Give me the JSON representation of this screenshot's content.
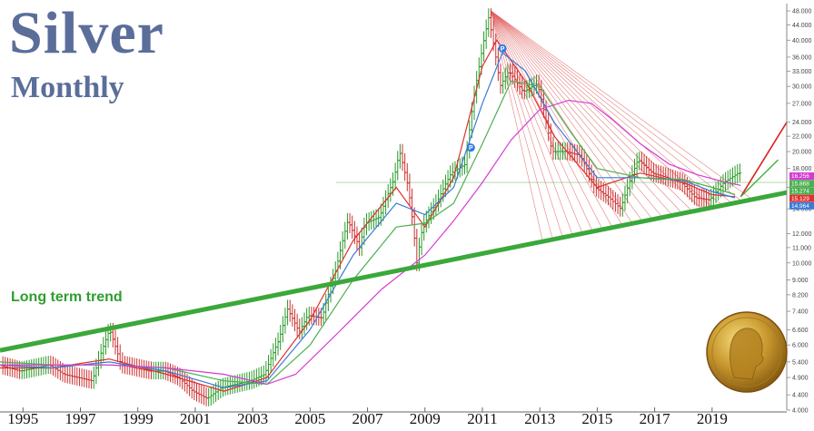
{
  "title": "Silver",
  "subtitle": "Monthly",
  "annotation_label": "Long term trend",
  "colors": {
    "title": "#5b6e9a",
    "trendline": "#3aa83a",
    "fan_lines": "#e06060",
    "projection_red": "#e02020",
    "projection_green": "#40b040",
    "ma_red": "#e03030",
    "ma_blue": "#3a7ad8",
    "ma_green": "#4caf50",
    "ma_magenta": "#d63ad6",
    "up_candle": "#2a9a2a",
    "down_candle": "#cc3030"
  },
  "chart_data": {
    "type": "line",
    "title": "Silver",
    "subtitle": "Monthly",
    "xlabel": "",
    "ylabel": "",
    "y_scale": "log",
    "grid": false,
    "x_tick_labels": [
      "1995",
      "1997",
      "1999",
      "2001",
      "2003",
      "2005",
      "2007",
      "2009",
      "2011",
      "2013",
      "2015",
      "2017",
      "2019"
    ],
    "y_tick_labels": [
      "48.000",
      "44.000",
      "40.000",
      "36.000",
      "33.000",
      "30.000",
      "27.000",
      "24.000",
      "22.000",
      "20.000",
      "18.000",
      "16.000",
      "14.000",
      "12.000",
      "11.000",
      "10.000",
      "9.000",
      "8.200",
      "7.400",
      "6.600",
      "6.000",
      "5.400",
      "4.900",
      "4.400",
      "4.000"
    ],
    "ylim": [
      4.0,
      48.0
    ],
    "xlim": [
      1994.2,
      2021.6
    ],
    "price_labels": [
      {
        "value": "16.256",
        "color": "#d63ad6"
      },
      {
        "value": "15.868",
        "color": "#4caf50"
      },
      {
        "value": "15.274",
        "color": "#4caf50"
      },
      {
        "value": "15.129",
        "color": "#e03030"
      },
      {
        "value": "14.964",
        "color": "#3a7ad8"
      }
    ],
    "markers": [
      {
        "label": "P",
        "x": 2010.6,
        "y": 20.5
      },
      {
        "label": "P",
        "x": 2011.7,
        "y": 38.0
      }
    ],
    "series": [
      {
        "name": "",
        "role": "price",
        "x": [
          1994.2,
          1995,
          1995.5,
          1996,
          1996.5,
          1997,
          1997.5,
          1998.1,
          1998.5,
          1999,
          1999.5,
          2000,
          2000.5,
          2001,
          2001.5,
          2002,
          2002.5,
          2003,
          2003.5,
          2004,
          2004.3,
          2004.7,
          2005,
          2005.5,
          2006,
          2006.4,
          2006.8,
          2007,
          2007.5,
          2008,
          2008.2,
          2008.5,
          2008.8,
          2009,
          2009.5,
          2010,
          2010.5,
          2011,
          2011.3,
          2011.7,
          2012,
          2012.5,
          2013,
          2013.5,
          2014,
          2014.5,
          2015,
          2015.5,
          2015.9,
          2016.5,
          2017,
          2017.5,
          2018,
          2018.5,
          2019,
          2019.5,
          2020.0
        ],
        "values": [
          5.3,
          5.1,
          5.2,
          5.3,
          5.0,
          4.9,
          4.8,
          6.6,
          5.3,
          5.2,
          5.1,
          5.1,
          4.9,
          4.5,
          4.3,
          4.6,
          4.7,
          4.8,
          5.0,
          6.2,
          7.5,
          6.5,
          7.2,
          7.1,
          9.7,
          13.0,
          11.0,
          12.8,
          13.3,
          16.8,
          20.0,
          16.0,
          10.0,
          12.5,
          14.6,
          17.5,
          18.5,
          35.0,
          46.0,
          30.0,
          33.0,
          29.0,
          30.5,
          20.0,
          20.0,
          19.5,
          16.0,
          15.0,
          14.0,
          19.0,
          17.5,
          17.0,
          16.5,
          15.0,
          14.8,
          16.5,
          17.5
        ]
      },
      {
        "name": "",
        "role": "ma-fast",
        "x": [
          1994.2,
          1996,
          1998,
          2000,
          2002,
          2003.5,
          2005,
          2006.5,
          2008,
          2009,
          2010,
          2011,
          2011.5,
          2012.5,
          2013.5,
          2015,
          2016.5,
          2018,
          2019,
          2019.8
        ],
        "values": [
          5.2,
          5.2,
          5.5,
          5.0,
          4.5,
          4.9,
          7.0,
          11.5,
          16.0,
          12.5,
          17.0,
          34.0,
          40.0,
          31.0,
          22.0,
          16.0,
          17.5,
          16.5,
          15.3,
          15.1
        ]
      },
      {
        "name": "",
        "role": "ma-mid",
        "x": [
          1994.2,
          1996,
          1998,
          2000,
          2002,
          2003.5,
          2005,
          2006.5,
          2008,
          2009,
          2010,
          2011,
          2011.7,
          2012.5,
          2013.5,
          2015,
          2016.5,
          2018,
          2019,
          2019.8
        ],
        "values": [
          5.3,
          5.2,
          5.4,
          5.1,
          4.6,
          4.8,
          6.6,
          10.5,
          14.5,
          13.5,
          16.0,
          27.0,
          37.0,
          33.0,
          24.0,
          17.0,
          17.0,
          16.7,
          15.6,
          15.0
        ]
      },
      {
        "name": "",
        "role": "ma-slow",
        "x": [
          1994.2,
          1996,
          1998,
          2000,
          2002,
          2003.5,
          2005,
          2006.5,
          2008,
          2009,
          2010,
          2011,
          2012,
          2013,
          2014,
          2015,
          2016.5,
          2018,
          2019,
          2019.8
        ],
        "values": [
          5.4,
          5.3,
          5.3,
          5.2,
          4.8,
          4.7,
          6.0,
          9.0,
          12.5,
          12.8,
          14.5,
          21.0,
          31.0,
          30.0,
          23.0,
          18.0,
          17.0,
          16.8,
          16.0,
          15.3
        ]
      },
      {
        "name": "",
        "role": "ma-long",
        "x": [
          1994.2,
          1996,
          1998,
          2000,
          2002,
          2003.5,
          2004.5,
          2006,
          2007.5,
          2009,
          2010,
          2011,
          2012,
          2013,
          2014,
          2014.8,
          2015.5,
          2016.5,
          2017.5,
          2018.5,
          2019.5,
          2020.0
        ],
        "values": [
          5.3,
          5.3,
          5.3,
          5.2,
          5.0,
          4.7,
          5.0,
          6.5,
          8.5,
          10.5,
          13.0,
          16.5,
          21.5,
          26.0,
          27.5,
          27.0,
          24.5,
          21.0,
          18.5,
          17.3,
          16.5,
          16.2
        ]
      }
    ],
    "trendline": {
      "x": [
        1994.2,
        2021.6
      ],
      "y": [
        5.8,
        15.5
      ]
    },
    "fan": {
      "origin_x": 2011.3,
      "origin_y": 48.0
    },
    "projection_red": {
      "x": [
        2020.0,
        2021.6
      ],
      "y": [
        15.1,
        24.0
      ]
    },
    "projection_green": {
      "x": [
        2020.0,
        2021.3
      ],
      "y": [
        15.1,
        19.0
      ]
    },
    "horizontal_line": 16.5
  }
}
